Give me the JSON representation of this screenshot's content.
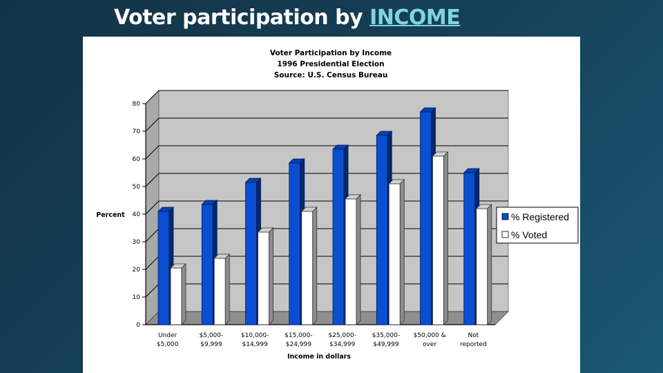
{
  "slide": {
    "title_prefix": "Voter participation by ",
    "title_link": "INCOME"
  },
  "chart_data": {
    "type": "bar",
    "title_lines": [
      "Voter Participation by Income",
      "1996 Presidential Election",
      "Source:  U.S. Census Bureau"
    ],
    "ylabel": "Percent",
    "xlabel": "Income in dollars",
    "ylim": [
      0,
      80
    ],
    "yticks": [
      0,
      10,
      20,
      30,
      40,
      50,
      60,
      70,
      80
    ],
    "grid": true,
    "legend_position": "right",
    "categories": [
      [
        "Under",
        "$5,000"
      ],
      [
        "$5,000-",
        "$9,999"
      ],
      [
        "$10,000-",
        "$14,999"
      ],
      [
        "$15,000-",
        "$24,999"
      ],
      [
        "$25,000-",
        "$34,999"
      ],
      [
        "$35,000-",
        "$49,999"
      ],
      [
        "$50,000 &",
        "over"
      ],
      [
        "Not",
        "reported"
      ]
    ],
    "series": [
      {
        "name": "% Registered",
        "color": "#0a4fcf",
        "values": [
          41,
          43.5,
          51.5,
          58.5,
          63.5,
          68.5,
          77,
          55
        ]
      },
      {
        "name": "% Voted",
        "color": "#ffffff",
        "values": [
          20.5,
          24,
          33.5,
          41,
          45.5,
          51,
          61,
          42
        ]
      }
    ]
  }
}
